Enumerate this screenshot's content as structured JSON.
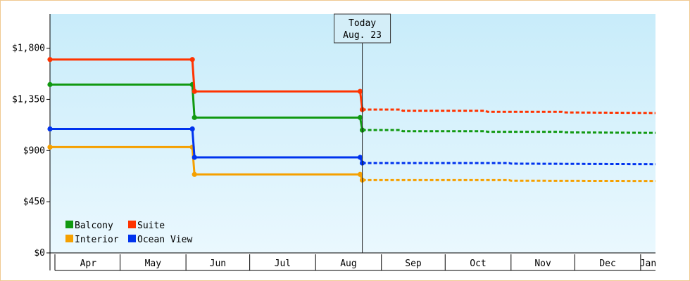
{
  "chart_data": {
    "type": "line",
    "title": "",
    "xlabel": "",
    "ylabel": "",
    "ylim": [
      0,
      2100
    ],
    "y_ticks": [
      {
        "value": 0,
        "label": "$0"
      },
      {
        "value": 450,
        "label": "$450"
      },
      {
        "value": 900,
        "label": "$900"
      },
      {
        "value": 1350,
        "label": "$1,350"
      },
      {
        "value": 1800,
        "label": "$1,800"
      }
    ],
    "x_range": [
      "2024-03-29",
      "2025-01-08"
    ],
    "x_months": [
      {
        "label": "Apr",
        "start": "2024-04-01"
      },
      {
        "label": "May",
        "start": "2024-05-01"
      },
      {
        "label": "Jun",
        "start": "2024-06-01"
      },
      {
        "label": "Jul",
        "start": "2024-07-01"
      },
      {
        "label": "Aug",
        "start": "2024-08-01"
      },
      {
        "label": "Sep",
        "start": "2024-09-01"
      },
      {
        "label": "Oct",
        "start": "2024-10-01"
      },
      {
        "label": "Nov",
        "start": "2024-11-01"
      },
      {
        "label": "Dec",
        "start": "2024-12-01"
      },
      {
        "label": "Jan",
        "start": "2025-01-01"
      }
    ],
    "today": {
      "date": "2024-08-23",
      "label_line1": "Today",
      "label_line2": "Aug. 23"
    },
    "legend": {
      "placement": "bottom-left"
    },
    "series": [
      {
        "name": "Balcony",
        "color": "#119911",
        "points": [
          [
            "2024-03-29",
            1480
          ],
          [
            "2024-06-04",
            1480
          ],
          [
            "2024-06-05",
            1190
          ],
          [
            "2024-08-22",
            1190
          ],
          [
            "2024-08-23",
            1080
          ]
        ],
        "forecast": [
          [
            "2024-08-23",
            1080
          ],
          [
            "2024-09-10",
            1080
          ],
          [
            "2024-09-11",
            1070
          ],
          [
            "2024-10-20",
            1070
          ],
          [
            "2024-10-21",
            1065
          ],
          [
            "2024-11-25",
            1065
          ],
          [
            "2024-11-26",
            1060
          ],
          [
            "2025-01-08",
            1055
          ]
        ]
      },
      {
        "name": "Suite",
        "color": "#ff3300",
        "points": [
          [
            "2024-03-29",
            1700
          ],
          [
            "2024-06-04",
            1700
          ],
          [
            "2024-06-05",
            1420
          ],
          [
            "2024-08-22",
            1420
          ],
          [
            "2024-08-23",
            1260
          ]
        ],
        "forecast": [
          [
            "2024-08-23",
            1260
          ],
          [
            "2024-09-10",
            1260
          ],
          [
            "2024-09-11",
            1250
          ],
          [
            "2024-10-20",
            1250
          ],
          [
            "2024-10-21",
            1240
          ],
          [
            "2024-11-25",
            1240
          ],
          [
            "2024-11-26",
            1235
          ],
          [
            "2025-01-08",
            1230
          ]
        ]
      },
      {
        "name": "Interior",
        "color": "#f5a000",
        "points": [
          [
            "2024-03-29",
            930
          ],
          [
            "2024-06-04",
            930
          ],
          [
            "2024-06-05",
            690
          ],
          [
            "2024-08-22",
            690
          ],
          [
            "2024-08-23",
            640
          ]
        ],
        "forecast": [
          [
            "2024-08-23",
            640
          ],
          [
            "2024-10-31",
            640
          ],
          [
            "2024-11-01",
            635
          ],
          [
            "2025-01-08",
            632
          ]
        ]
      },
      {
        "name": "Ocean View",
        "color": "#0033ee",
        "points": [
          [
            "2024-03-29",
            1090
          ],
          [
            "2024-06-04",
            1090
          ],
          [
            "2024-06-05",
            840
          ],
          [
            "2024-08-22",
            840
          ],
          [
            "2024-08-23",
            790
          ]
        ],
        "forecast": [
          [
            "2024-08-23",
            790
          ],
          [
            "2024-10-31",
            790
          ],
          [
            "2024-11-01",
            785
          ],
          [
            "2025-01-08",
            780
          ]
        ]
      }
    ]
  }
}
